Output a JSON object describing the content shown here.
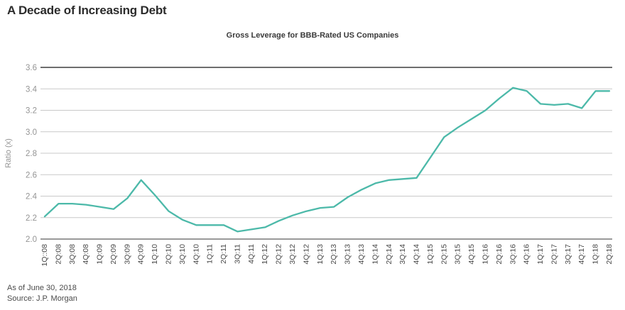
{
  "title": "A Decade of Increasing Debt",
  "footer": {
    "as_of": "As of June 30, 2018",
    "source": "Source: J.P. Morgan"
  },
  "colors": {
    "line": "#4cb9a9",
    "gridline": "#c9c9c9",
    "axis_top": "#6e6e6e",
    "axis_bottom": "#9a9a9a",
    "x_tick_label": "#454545",
    "y_tick_label": "#949494",
    "background": "#ffffff"
  },
  "chart_data": {
    "type": "line",
    "title": "Gross Leverage for BBB-Rated US Companies",
    "xlabel": "",
    "ylabel": "Ratio (x)",
    "ylim": [
      2.0,
      3.6
    ],
    "yticks": [
      2.0,
      2.2,
      2.4,
      2.6,
      2.8,
      3.0,
      3.2,
      3.4,
      3.6
    ],
    "grid": "horizontal",
    "legend_position": "none",
    "categories": [
      "1Q::08",
      "2Q:08",
      "3Q:08",
      "4Q:08",
      "1Q:09",
      "2Q:09",
      "3Q:09",
      "4Q:09",
      "1Q:10",
      "2Q:10",
      "3Q:10",
      "4Q:10",
      "1Q:11",
      "2Q:11",
      "3Q:11",
      "4Q:11",
      "1Q:12",
      "2Q:12",
      "3Q:12",
      "4Q:12",
      "1Q:13",
      "2Q:13",
      "3Q:13",
      "4Q:13",
      "1Q:14",
      "2Q:14",
      "3Q:14",
      "4Q:14",
      "1Q:15",
      "2Q:15",
      "3Q:15",
      "4Q:15",
      "1Q:16",
      "2Q:16",
      "3Q:16",
      "4Q:16",
      "1Q:17",
      "2Q:17",
      "3Q:17",
      "4Q:17",
      "1Q:18",
      "2Q:18"
    ],
    "series": [
      {
        "name": "Gross leverage for BBB-rated US companies",
        "values": [
          2.21,
          2.33,
          2.33,
          2.32,
          2.3,
          2.28,
          2.38,
          2.55,
          2.41,
          2.26,
          2.18,
          2.13,
          2.13,
          2.13,
          2.07,
          2.09,
          2.11,
          2.17,
          2.22,
          2.26,
          2.29,
          2.3,
          2.39,
          2.46,
          2.52,
          2.55,
          2.56,
          2.57,
          2.76,
          2.95,
          3.04,
          3.12,
          3.2,
          3.31,
          3.41,
          3.38,
          3.26,
          3.25,
          3.26,
          3.22,
          3.38,
          3.38
        ]
      }
    ]
  }
}
